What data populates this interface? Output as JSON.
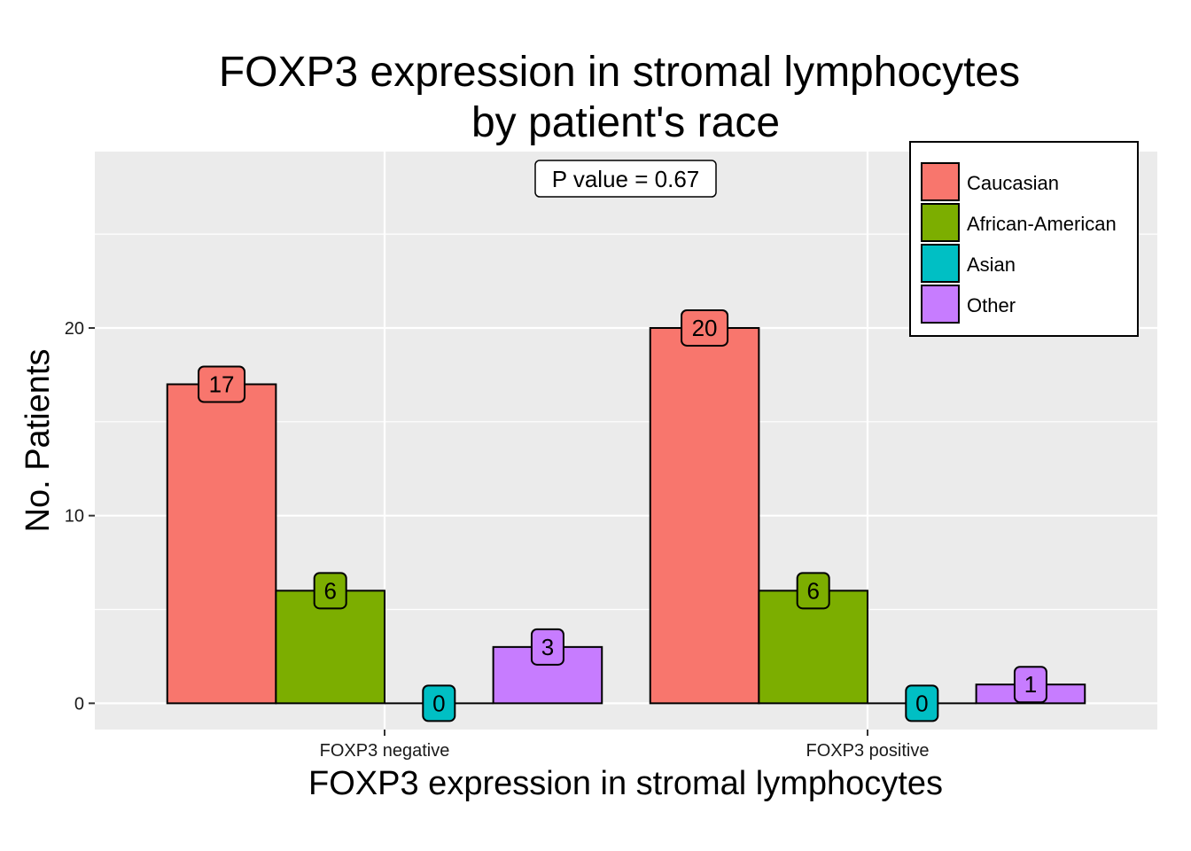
{
  "chart_data": {
    "type": "bar",
    "title": [
      "FOXP3 expression in stromal lymphocytes",
      "by patient's race"
    ],
    "xlabel": "FOXP3 expression in stromal lymphocytes",
    "ylabel": "No. Patients",
    "categories": [
      "FOXP3 negative",
      "FOXP3 positive"
    ],
    "series": [
      {
        "name": "Caucasian",
        "color": "#F8766D",
        "values": [
          17,
          20
        ]
      },
      {
        "name": "African-American",
        "color": "#7CAE00",
        "values": [
          6,
          6
        ]
      },
      {
        "name": "Asian",
        "color": "#00BFC4",
        "values": [
          0,
          0
        ]
      },
      {
        "name": "Other",
        "color": "#C77CFF",
        "values": [
          3,
          1
        ]
      }
    ],
    "ylim": [
      -1.4,
      29.4
    ],
    "yticks": [
      0,
      10,
      20
    ],
    "y_minor_ticks": [
      5,
      15,
      25
    ],
    "annotation": "P value = 0.67",
    "legend_position": "top-right",
    "grid": true,
    "panel_background": "#EBEBEB",
    "gridline_color": "#FFFFFF"
  }
}
